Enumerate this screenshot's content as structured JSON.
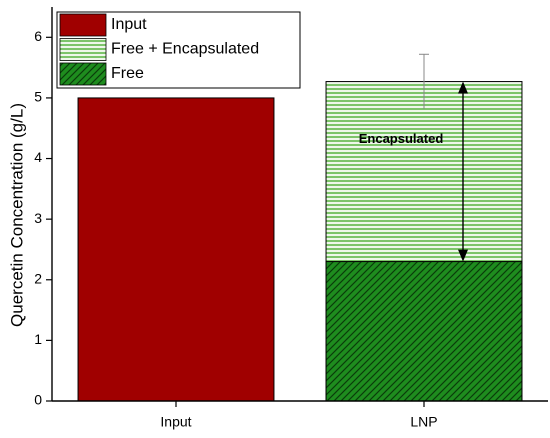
{
  "chart_data": {
    "type": "bar",
    "y_label": "Quercetin Concentration (g/L)",
    "categories": [
      "Input",
      "LNP"
    ],
    "series": [
      {
        "name": "Input",
        "color": "#a00000",
        "hatch": "solid",
        "values": [
          5.0,
          null
        ]
      },
      {
        "name": "Free + Encapsulated",
        "color": "#4caf32",
        "hatch": "horizontal",
        "values": [
          null,
          5.27
        ],
        "errors": [
          null,
          0.45
        ]
      },
      {
        "name": "Free",
        "color": "#1e8c1e",
        "hatch": "diagonal",
        "values": [
          null,
          2.3
        ]
      }
    ],
    "annotation": "Encapsulated",
    "ylim": [
      0,
      6.5
    ],
    "yticks": [
      0,
      1,
      2,
      3,
      4,
      5,
      6
    ],
    "legend": "upper left"
  }
}
